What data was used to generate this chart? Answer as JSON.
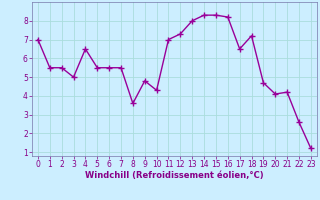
{
  "x": [
    0,
    1,
    2,
    3,
    4,
    5,
    6,
    7,
    8,
    9,
    10,
    11,
    12,
    13,
    14,
    15,
    16,
    17,
    18,
    19,
    20,
    21,
    22,
    23
  ],
  "y": [
    7.0,
    5.5,
    5.5,
    5.0,
    6.5,
    5.5,
    5.5,
    5.5,
    3.6,
    4.8,
    4.3,
    7.0,
    7.3,
    8.0,
    8.3,
    8.3,
    8.2,
    6.5,
    7.2,
    4.7,
    4.1,
    4.2,
    2.6,
    1.2
  ],
  "line_color": "#990099",
  "marker": "+",
  "markersize": 4,
  "linewidth": 1.0,
  "markeredgewidth": 1.0,
  "xlabel": "Windchill (Refroidissement éolien,°C)",
  "xlabel_fontsize": 6,
  "xlim": [
    -0.5,
    23.5
  ],
  "ylim": [
    0.8,
    9.0
  ],
  "yticks": [
    1,
    2,
    3,
    4,
    5,
    6,
    7,
    8
  ],
  "xticks": [
    0,
    1,
    2,
    3,
    4,
    5,
    6,
    7,
    8,
    9,
    10,
    11,
    12,
    13,
    14,
    15,
    16,
    17,
    18,
    19,
    20,
    21,
    22,
    23
  ],
  "tick_fontsize": 5.5,
  "background_color": "#cceeff",
  "grid_color": "#aadddd",
  "spine_color": "#7777aa",
  "text_color": "#880088"
}
